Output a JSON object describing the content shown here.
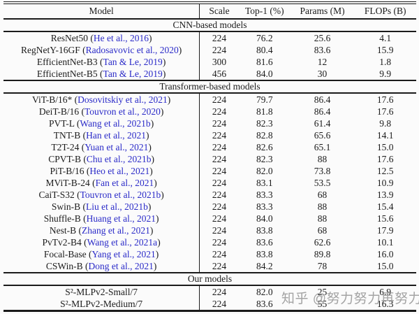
{
  "link_color": "#2a2ac8",
  "watermark": {
    "text": "知乎 @努力努力再努力"
  },
  "table": {
    "columns": [
      "Model",
      "Scale",
      "Top-1 (%)",
      "Params (M)",
      "FLOPs (B)"
    ],
    "sections": [
      {
        "label": "CNN-based models",
        "rows": [
          {
            "model": "ResNet50",
            "cite": "He et al., 2016",
            "scale": "224",
            "top1": "76.2",
            "params": "25.6",
            "flops": "4.1"
          },
          {
            "model": "RegNetY-16GF",
            "cite": "Radosavovic et al., 2020",
            "scale": "224",
            "top1": "80.4",
            "params": "83.6",
            "flops": "15.9"
          },
          {
            "model": "EfficientNet-B3",
            "cite": "Tan & Le, 2019",
            "scale": "300",
            "top1": "81.6",
            "params": "12",
            "flops": "1.8"
          },
          {
            "model": "EfficientNet-B5",
            "cite": "Tan & Le, 2019",
            "scale": "456",
            "top1": "84.0",
            "params": "30",
            "flops": "9.9"
          }
        ]
      },
      {
        "label": "Transformer-based models",
        "rows": [
          {
            "model": "ViT-B/16*",
            "cite": "Dosovitskiy et al., 2021",
            "scale": "224",
            "top1": "79.7",
            "params": "86.4",
            "flops": "17.6"
          },
          {
            "model": "DeiT-B/16",
            "cite": "Touvron et al., 2020",
            "scale": "224",
            "top1": "81.8",
            "params": "86.4",
            "flops": "17.6"
          },
          {
            "model": "PVT-L",
            "cite": "Wang et al., 2021b",
            "scale": "224",
            "top1": "82.3",
            "params": "61.4",
            "flops": "9.8"
          },
          {
            "model": "TNT-B",
            "cite": "Han et al., 2021",
            "scale": "224",
            "top1": "82.8",
            "params": "65.6",
            "flops": "14.1"
          },
          {
            "model": "T2T-24",
            "cite": "Yuan et al., 2021",
            "scale": "224",
            "top1": "82.6",
            "params": "65.1",
            "flops": "15.0"
          },
          {
            "model": "CPVT-B",
            "cite": "Chu et al., 2021b",
            "scale": "224",
            "top1": "82.3",
            "params": "88",
            "flops": "17.6"
          },
          {
            "model": "PiT-B/16",
            "cite": "Heo et al., 2021",
            "scale": "224",
            "top1": "82.0",
            "params": "73.8",
            "flops": "12.5"
          },
          {
            "model": "MViT-B-24",
            "cite": "Fan et al., 2021",
            "scale": "224",
            "top1": "83.1",
            "params": "53.5",
            "flops": "10.9"
          },
          {
            "model": "CaiT-S32",
            "cite": "Touvron et al., 2021b",
            "scale": "224",
            "top1": "83.3",
            "params": "68",
            "flops": "13.9"
          },
          {
            "model": "Swin-B",
            "cite": "Liu et al., 2021b",
            "scale": "224",
            "top1": "83.3",
            "params": "88",
            "flops": "15.4"
          },
          {
            "model": "Shuffle-B",
            "cite": "Huang et al., 2021",
            "scale": "224",
            "top1": "84.0",
            "params": "88",
            "flops": "15.6"
          },
          {
            "model": "Nest-B",
            "cite": "Zhang et al., 2021",
            "scale": "224",
            "top1": "83.8",
            "params": "68",
            "flops": "17.9"
          },
          {
            "model": "PvTv2-B4",
            "cite": "Wang et al., 2021a",
            "scale": "224",
            "top1": "83.6",
            "params": "62.6",
            "flops": "10.1"
          },
          {
            "model": "Focal-Base",
            "cite": "Yang et al., 2021",
            "scale": "224",
            "top1": "83.8",
            "params": "89.8",
            "flops": "16.0"
          },
          {
            "model": "CSWin-B",
            "cite": "Dong et al., 2021",
            "scale": "224",
            "top1": "84.2",
            "params": "78",
            "flops": "15.0"
          }
        ]
      },
      {
        "label": "Our models",
        "rows": [
          {
            "model": "S²-MLPv2-Small/7",
            "cite": "",
            "scale": "224",
            "top1": "82.0",
            "params": "25",
            "flops": "6.9"
          },
          {
            "model": "S²-MLPv2-Medium/7",
            "cite": "",
            "scale": "224",
            "top1": "83.6",
            "params": "55",
            "flops": "16.3"
          }
        ]
      }
    ]
  }
}
